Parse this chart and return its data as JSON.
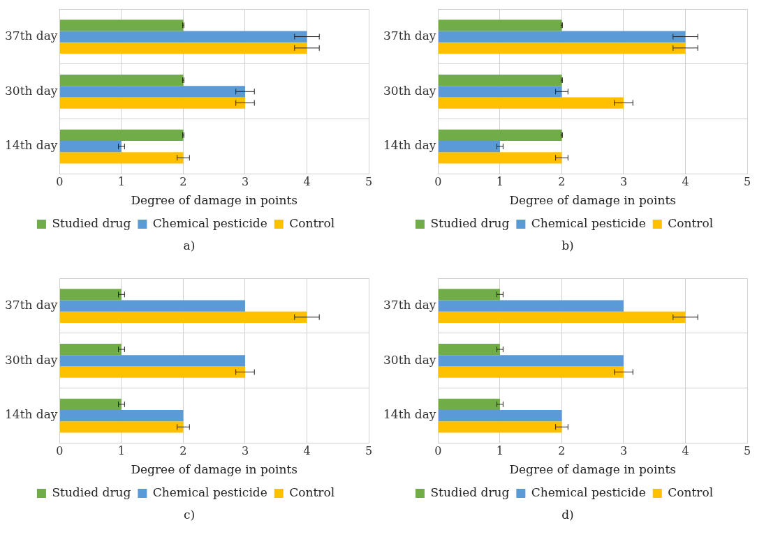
{
  "chart_data": [
    {
      "type": "bar",
      "orientation": "horizontal",
      "xlabel": "Degree of damage in points",
      "categories": [
        "37th day",
        "30th day",
        "14th day"
      ],
      "xlim": [
        0,
        5
      ],
      "xticks": [
        0,
        1,
        2,
        3,
        4,
        5
      ],
      "grid": true,
      "legend": "bottom",
      "annotations": [
        "a)"
      ],
      "series": [
        {
          "name": "Studied drug",
          "color": "#70ad47",
          "values": [
            2,
            2,
            2
          ],
          "errors": [
            0.01,
            0.01,
            0.01
          ]
        },
        {
          "name": "Chemical pesticide",
          "color": "#5b9bd5",
          "values": [
            4,
            3,
            1
          ],
          "errors": [
            0.2,
            0.15,
            0.05
          ]
        },
        {
          "name": "Control",
          "color": "#ffc000",
          "values": [
            4,
            3,
            2
          ],
          "errors": [
            0.2,
            0.15,
            0.1
          ]
        }
      ]
    },
    {
      "type": "bar",
      "orientation": "horizontal",
      "xlabel": "Degree of damage in points",
      "categories": [
        "37th day",
        "30th day",
        "14th day"
      ],
      "xlim": [
        0,
        5
      ],
      "xticks": [
        0,
        1,
        2,
        3,
        4,
        5
      ],
      "grid": true,
      "legend": "bottom",
      "annotations": [
        "b)"
      ],
      "series": [
        {
          "name": "Studied drug",
          "color": "#70ad47",
          "values": [
            2,
            2,
            2
          ],
          "errors": [
            0.01,
            0.01,
            0.01
          ]
        },
        {
          "name": "Chemical pesticide",
          "color": "#5b9bd5",
          "values": [
            4,
            2,
            1
          ],
          "errors": [
            0.2,
            0.1,
            0.05
          ]
        },
        {
          "name": "Control",
          "color": "#ffc000",
          "values": [
            4,
            3,
            2
          ],
          "errors": [
            0.2,
            0.15,
            0.1
          ]
        }
      ]
    },
    {
      "type": "bar",
      "orientation": "horizontal",
      "xlabel": "Degree of damage in points",
      "categories": [
        "37th day",
        "30th day",
        "14th day"
      ],
      "xlim": [
        0,
        5
      ],
      "xticks": [
        0,
        1,
        2,
        3,
        4,
        5
      ],
      "grid": true,
      "legend": "bottom",
      "annotations": [
        "c)"
      ],
      "series": [
        {
          "name": "Studied drug",
          "color": "#70ad47",
          "values": [
            1,
            1,
            1
          ],
          "errors": [
            0.05,
            0.05,
            0.05
          ]
        },
        {
          "name": "Chemical pesticide",
          "color": "#5b9bd5",
          "values": [
            3,
            3,
            2
          ]
        },
        {
          "name": "Control",
          "color": "#ffc000",
          "values": [
            4,
            3,
            2
          ],
          "errors": [
            0.2,
            0.15,
            0.1
          ]
        }
      ]
    },
    {
      "type": "bar",
      "orientation": "horizontal",
      "xlabel": "Degree of damage in points",
      "categories": [
        "37th day",
        "30th day",
        "14th day"
      ],
      "xlim": [
        0,
        5
      ],
      "xticks": [
        0,
        1,
        2,
        3,
        4,
        5
      ],
      "grid": true,
      "legend": "bottom",
      "annotations": [
        "d)"
      ],
      "series": [
        {
          "name": "Studied drug",
          "color": "#70ad47",
          "values": [
            1,
            1,
            1
          ],
          "errors": [
            0.05,
            0.05,
            0.05
          ]
        },
        {
          "name": "Chemical pesticide",
          "color": "#5b9bd5",
          "values": [
            3,
            3,
            2
          ]
        },
        {
          "name": "Control",
          "color": "#ffc000",
          "values": [
            4,
            3,
            2
          ],
          "errors": [
            0.2,
            0.15,
            0.1
          ]
        }
      ]
    }
  ]
}
